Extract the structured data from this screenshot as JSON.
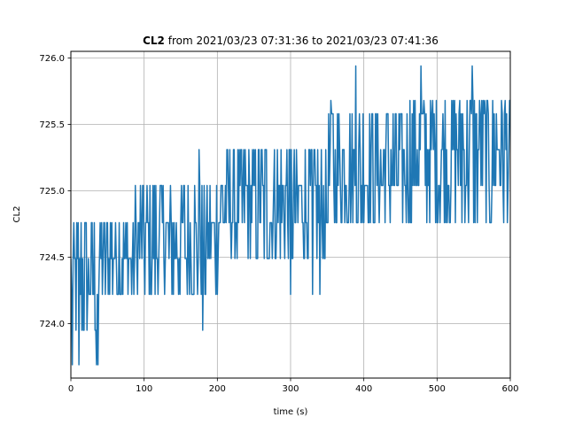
{
  "chart_data": {
    "type": "line",
    "title_bold": "CL2",
    "title_rest": " from 2021/03/23 07:31:36 to 2021/03/23 07:41:36",
    "xlabel": "time (s)",
    "ylabel": "CL2",
    "xlim": [
      0,
      600
    ],
    "ylim": [
      723.59,
      726.05
    ],
    "xticks": [
      0,
      100,
      200,
      300,
      400,
      500,
      600
    ],
    "yticks": [
      724.0,
      724.5,
      725.0,
      725.5,
      726.0
    ],
    "xtick_labels": [
      "0",
      "100",
      "200",
      "300",
      "400",
      "500",
      "600"
    ],
    "ytick_labels": [
      "724.0",
      "724.5",
      "725.0",
      "725.5",
      "726.0"
    ],
    "grid": true,
    "series": [
      {
        "color": "#1f77b4",
        "sample_interval_s": 1,
        "quantized_levels": [
          723.69,
          723.95,
          724.22,
          724.49,
          724.76,
          725.04,
          725.31,
          725.58,
          725.68,
          725.94
        ],
        "band_segments": [
          {
            "x": [
              0,
              40
            ],
            "low": 723.95,
            "high": 724.76
          },
          {
            "x": [
              40,
              90
            ],
            "low": 724.22,
            "high": 724.76
          },
          {
            "x": [
              90,
              200
            ],
            "low": 724.22,
            "high": 725.04
          },
          {
            "x": [
              200,
              260
            ],
            "low": 724.49,
            "high": 725.31
          },
          {
            "x": [
              260,
              350
            ],
            "low": 724.49,
            "high": 725.31
          },
          {
            "x": [
              350,
              460
            ],
            "low": 724.76,
            "high": 725.58
          },
          {
            "x": [
              460,
              600
            ],
            "low": 724.76,
            "high": 725.68
          }
        ],
        "spikes": [
          {
            "x": 2,
            "y": 723.69
          },
          {
            "x": 11,
            "y": 723.69
          },
          {
            "x": 35,
            "y": 723.69
          },
          {
            "x": 37,
            "y": 723.69
          },
          {
            "x": 180,
            "y": 723.95
          },
          {
            "x": 175,
            "y": 725.31
          },
          {
            "x": 88,
            "y": 725.04
          },
          {
            "x": 355,
            "y": 725.68
          },
          {
            "x": 389,
            "y": 725.94
          },
          {
            "x": 478,
            "y": 725.94
          },
          {
            "x": 548,
            "y": 725.94
          },
          {
            "x": 300,
            "y": 724.22
          },
          {
            "x": 330,
            "y": 724.22
          },
          {
            "x": 340,
            "y": 724.22
          }
        ]
      }
    ]
  }
}
